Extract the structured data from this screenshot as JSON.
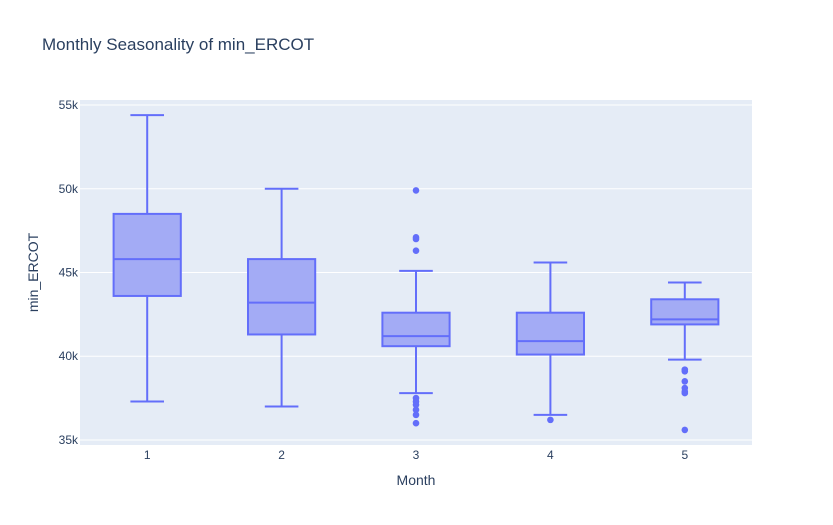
{
  "chart_data": {
    "type": "box",
    "title": "Monthly Seasonality of min_ERCOT",
    "xlabel": "Month",
    "ylabel": "min_ERCOT",
    "categories": [
      "1",
      "2",
      "3",
      "4",
      "5"
    ],
    "y_ticks": [
      35000,
      40000,
      45000,
      50000,
      55000
    ],
    "y_tick_labels": [
      "35k",
      "40k",
      "45k",
      "50k",
      "55k"
    ],
    "ylim": [
      34700,
      55300
    ],
    "grid": true,
    "colors": {
      "box_fill": "#a3abf5",
      "box_line": "#636efa",
      "plot_bg": "#e5ecf6",
      "text": "#2a3f5f"
    },
    "boxes": [
      {
        "category": "1",
        "lower_whisker": 37300,
        "q1": 43600,
        "median": 45800,
        "q3": 48500,
        "upper_whisker": 54400,
        "outliers": []
      },
      {
        "category": "2",
        "lower_whisker": 37000,
        "q1": 41300,
        "median": 43200,
        "q3": 45800,
        "upper_whisker": 50000,
        "outliers": []
      },
      {
        "category": "3",
        "lower_whisker": 37800,
        "q1": 40600,
        "median": 41200,
        "q3": 42600,
        "upper_whisker": 45100,
        "outliers": [
          49900,
          47100,
          47000,
          46300,
          37500,
          37300,
          37100,
          36800,
          36500,
          36000
        ]
      },
      {
        "category": "4",
        "lower_whisker": 36500,
        "q1": 40100,
        "median": 40900,
        "q3": 42600,
        "upper_whisker": 45600,
        "outliers": [
          36200
        ]
      },
      {
        "category": "5",
        "lower_whisker": 39800,
        "q1": 41900,
        "median": 42200,
        "q3": 43400,
        "upper_whisker": 44400,
        "outliers": [
          39200,
          39100,
          38500,
          38100,
          37900,
          37800,
          35600
        ]
      }
    ]
  }
}
